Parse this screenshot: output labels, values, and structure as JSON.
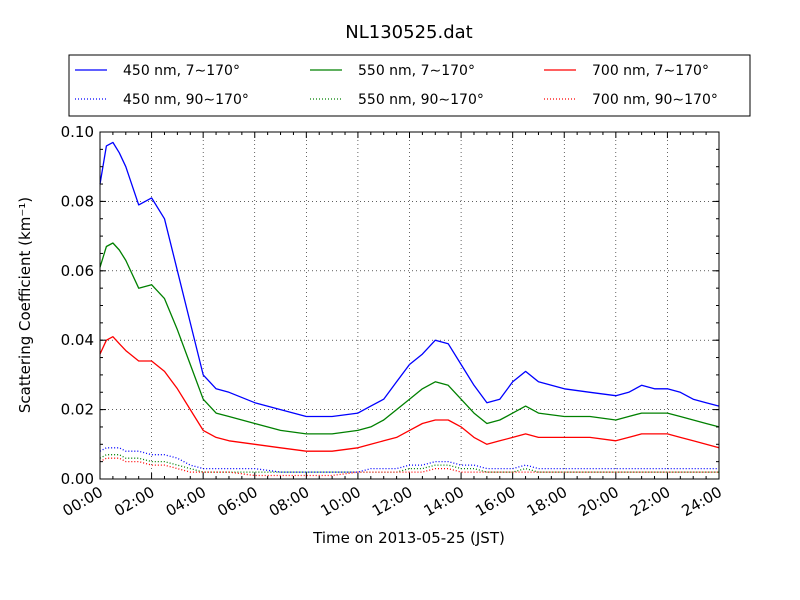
{
  "chart_data": {
    "type": "line",
    "title": "NL130525.dat",
    "xlabel": "Time on 2013-05-25 (JST)",
    "ylabel": "Scattering Coefficient (km⁻¹)",
    "xlim": [
      0,
      24
    ],
    "ylim": [
      0.0,
      0.1
    ],
    "x_ticks": [
      "00:00",
      "02:00",
      "04:00",
      "06:00",
      "08:00",
      "10:00",
      "12:00",
      "14:00",
      "16:00",
      "18:00",
      "20:00",
      "22:00",
      "24:00"
    ],
    "y_ticks": [
      "0.00",
      "0.02",
      "0.04",
      "0.06",
      "0.08",
      "0.10"
    ],
    "grid": true,
    "legend_position": "top",
    "x_hours": [
      0,
      0.25,
      0.5,
      0.75,
      1,
      1.5,
      2,
      2.5,
      3,
      3.5,
      4,
      4.5,
      5,
      6,
      7,
      8,
      9,
      10,
      10.5,
      11,
      11.5,
      12,
      12.5,
      13,
      13.5,
      14,
      14.5,
      15,
      15.5,
      16,
      16.5,
      17,
      18,
      19,
      20,
      20.5,
      21,
      21.5,
      22,
      22.5,
      23,
      23.5,
      24
    ],
    "series": [
      {
        "name": "450 nm, 7∼170°",
        "color": "#0000ff",
        "style": "solid",
        "values": [
          0.085,
          0.096,
          0.097,
          0.094,
          0.09,
          0.079,
          0.081,
          0.075,
          0.06,
          0.045,
          0.03,
          0.026,
          0.025,
          0.022,
          0.02,
          0.018,
          0.018,
          0.019,
          0.021,
          0.023,
          0.028,
          0.033,
          0.036,
          0.04,
          0.039,
          0.033,
          0.027,
          0.022,
          0.023,
          0.028,
          0.031,
          0.028,
          0.026,
          0.025,
          0.024,
          0.025,
          0.027,
          0.026,
          0.026,
          0.025,
          0.023,
          0.022,
          0.021
        ]
      },
      {
        "name": "450 nm, 90∼170°",
        "color": "#0000ff",
        "style": "dotted",
        "values": [
          0.008,
          0.009,
          0.009,
          0.009,
          0.008,
          0.008,
          0.007,
          0.007,
          0.006,
          0.004,
          0.003,
          0.003,
          0.003,
          0.003,
          0.002,
          0.002,
          0.002,
          0.002,
          0.003,
          0.003,
          0.003,
          0.004,
          0.004,
          0.005,
          0.005,
          0.004,
          0.004,
          0.003,
          0.003,
          0.003,
          0.004,
          0.003,
          0.003,
          0.003,
          0.003,
          0.003,
          0.003,
          0.003,
          0.003,
          0.003,
          0.003,
          0.003,
          0.003
        ]
      },
      {
        "name": "550 nm, 7∼170°",
        "color": "#008000",
        "style": "solid",
        "values": [
          0.061,
          0.067,
          0.068,
          0.066,
          0.063,
          0.055,
          0.056,
          0.052,
          0.043,
          0.033,
          0.023,
          0.019,
          0.018,
          0.016,
          0.014,
          0.013,
          0.013,
          0.014,
          0.015,
          0.017,
          0.02,
          0.023,
          0.026,
          0.028,
          0.027,
          0.023,
          0.019,
          0.016,
          0.017,
          0.019,
          0.021,
          0.019,
          0.018,
          0.018,
          0.017,
          0.018,
          0.019,
          0.019,
          0.019,
          0.018,
          0.017,
          0.016,
          0.015
        ]
      },
      {
        "name": "550 nm, 90∼170°",
        "color": "#008000",
        "style": "dotted",
        "values": [
          0.006,
          0.007,
          0.007,
          0.007,
          0.006,
          0.006,
          0.005,
          0.005,
          0.004,
          0.003,
          0.002,
          0.002,
          0.002,
          0.002,
          0.002,
          0.002,
          0.002,
          0.002,
          0.002,
          0.002,
          0.002,
          0.003,
          0.003,
          0.004,
          0.004,
          0.003,
          0.003,
          0.002,
          0.002,
          0.002,
          0.003,
          0.002,
          0.002,
          0.002,
          0.002,
          0.002,
          0.002,
          0.002,
          0.002,
          0.002,
          0.002,
          0.002,
          0.002
        ]
      },
      {
        "name": "700 nm, 7∼170°",
        "color": "#ff0000",
        "style": "solid",
        "values": [
          0.036,
          0.04,
          0.041,
          0.039,
          0.037,
          0.034,
          0.034,
          0.031,
          0.026,
          0.02,
          0.014,
          0.012,
          0.011,
          0.01,
          0.009,
          0.008,
          0.008,
          0.009,
          0.01,
          0.011,
          0.012,
          0.014,
          0.016,
          0.017,
          0.017,
          0.015,
          0.012,
          0.01,
          0.011,
          0.012,
          0.013,
          0.012,
          0.012,
          0.012,
          0.011,
          0.012,
          0.013,
          0.013,
          0.013,
          0.012,
          0.011,
          0.01,
          0.009
        ]
      },
      {
        "name": "700 nm, 90∼170°",
        "color": "#ff0000",
        "style": "dotted",
        "values": [
          0.005,
          0.006,
          0.006,
          0.006,
          0.005,
          0.005,
          0.004,
          0.004,
          0.003,
          0.002,
          0.002,
          0.002,
          0.002,
          0.001,
          0.001,
          0.001,
          0.001,
          0.002,
          0.002,
          0.002,
          0.002,
          0.002,
          0.002,
          0.003,
          0.003,
          0.002,
          0.002,
          0.002,
          0.002,
          0.002,
          0.002,
          0.002,
          0.002,
          0.002,
          0.002,
          0.002,
          0.002,
          0.002,
          0.002,
          0.002,
          0.002,
          0.002,
          0.002
        ]
      }
    ]
  }
}
